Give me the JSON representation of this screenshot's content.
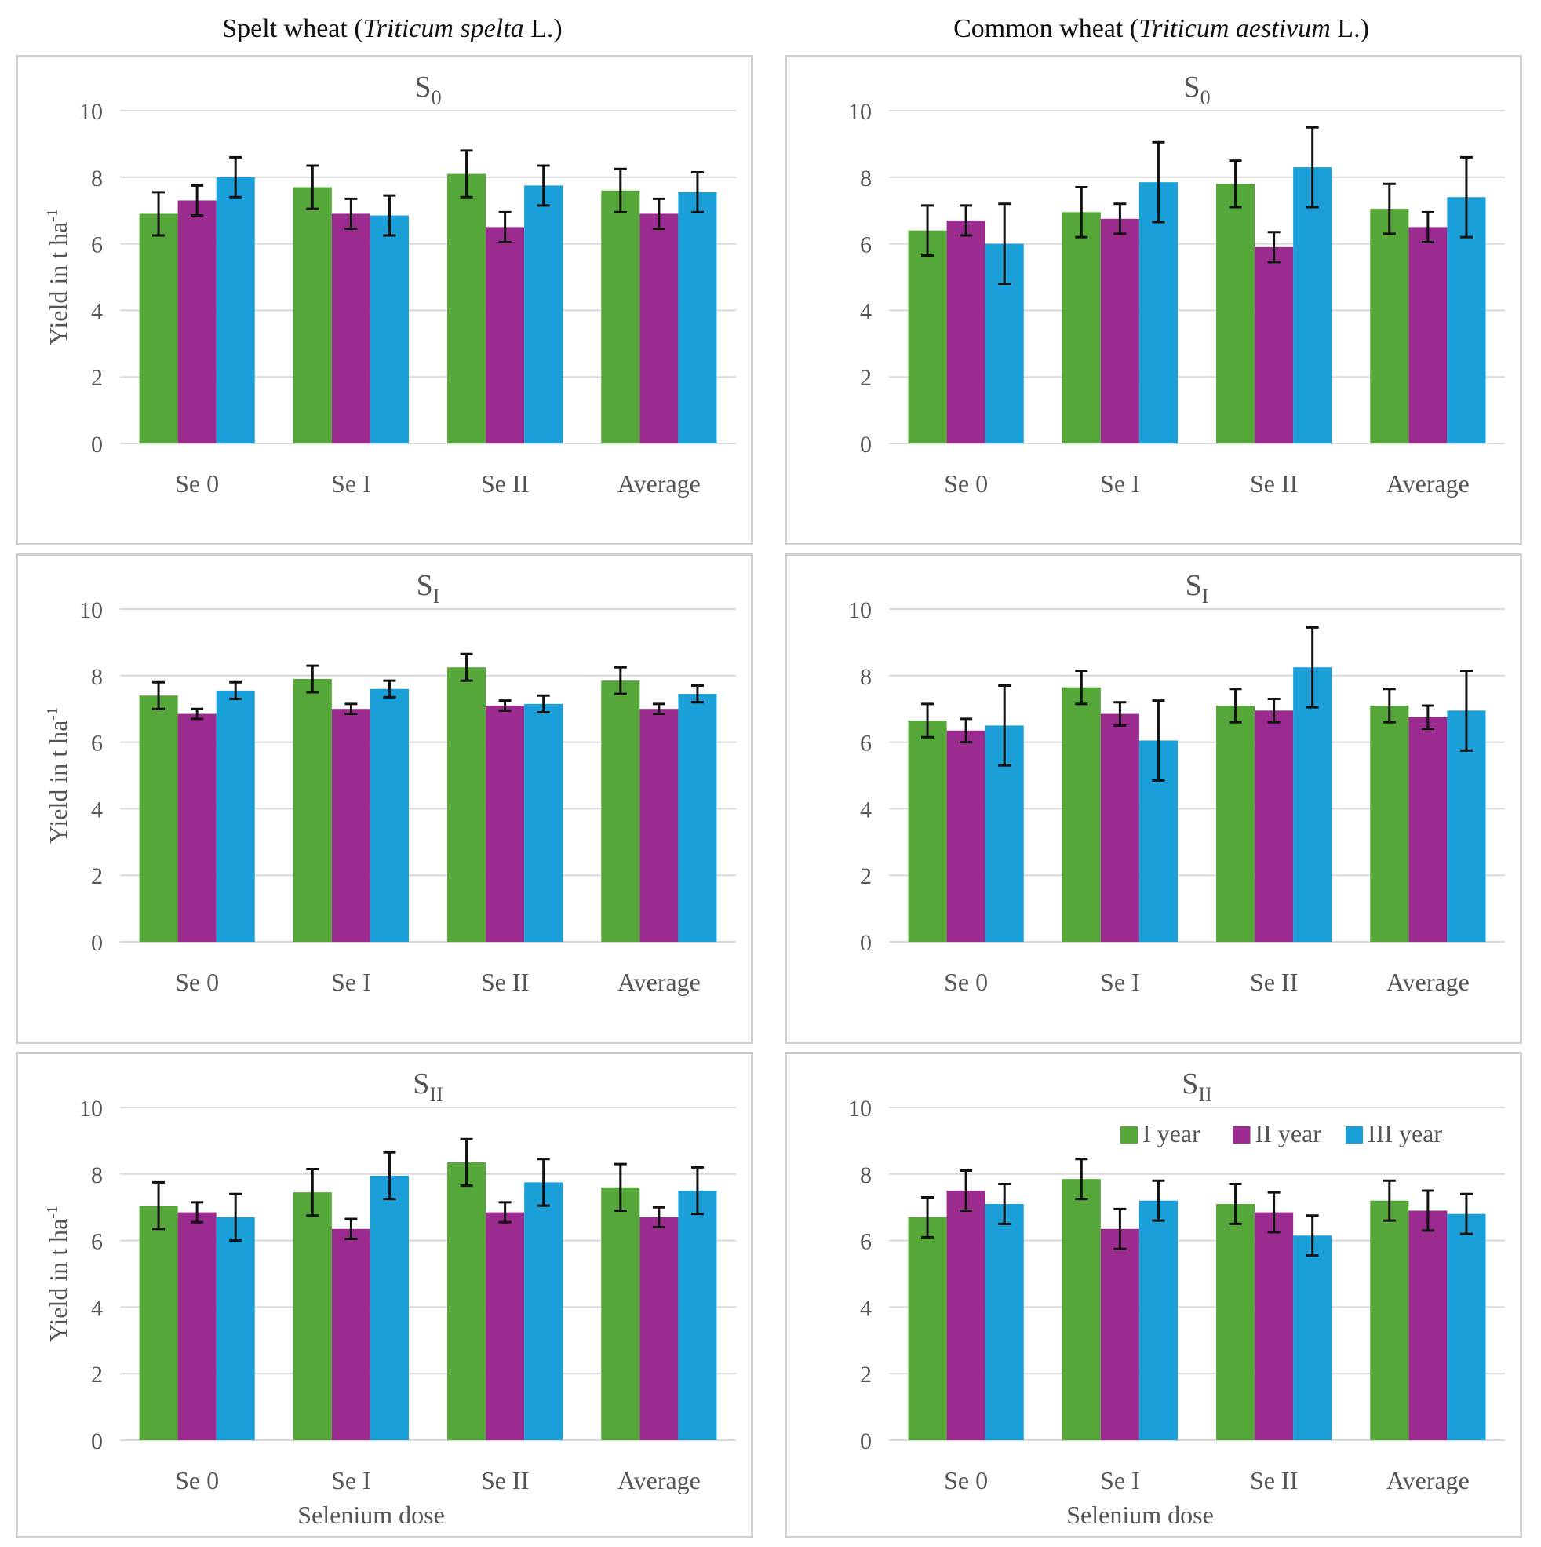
{
  "column_titles": {
    "left": {
      "prefix": "Spelt wheat (",
      "species": "Triticum spelta",
      "suffix": " L.)"
    },
    "right": {
      "prefix": "Common wheat (",
      "species": "Triticum aestivum",
      "suffix": " L.)"
    }
  },
  "colors": {
    "I year": "#56a73a",
    "II year": "#9b2b8e",
    "III year": "#1a9fd8",
    "error_bar": "#111111",
    "grid": "#d9d9d9"
  },
  "chart_data": [
    {
      "id": "spelt-s0",
      "type": "bar",
      "title_base": "S",
      "title_sub": "0",
      "categories": [
        "Se 0",
        "Se I",
        "Se II",
        "Average"
      ],
      "ylabel": "Yield in t ha",
      "ylabel_sup": "-1",
      "xlabel": "",
      "ylim": [
        0,
        10
      ],
      "yticks": [
        0,
        2,
        4,
        6,
        8,
        10
      ],
      "grid": true,
      "series": [
        {
          "name": "I year",
          "values": [
            6.9,
            7.7,
            8.1,
            7.6
          ],
          "errors": [
            0.65,
            0.65,
            0.7,
            0.65
          ]
        },
        {
          "name": "II year",
          "values": [
            7.3,
            6.9,
            6.5,
            6.9
          ],
          "errors": [
            0.45,
            0.45,
            0.45,
            0.45
          ]
        },
        {
          "name": "III year",
          "values": [
            8.0,
            6.85,
            7.75,
            7.55
          ],
          "errors": [
            0.6,
            0.6,
            0.6,
            0.6
          ]
        }
      ]
    },
    {
      "id": "common-s0",
      "type": "bar",
      "title_base": "S",
      "title_sub": "0",
      "categories": [
        "Se 0",
        "Se I",
        "Se II",
        "Average"
      ],
      "ylabel": "",
      "ylabel_sup": "",
      "xlabel": "",
      "ylim": [
        0,
        10
      ],
      "yticks": [
        0,
        2,
        4,
        6,
        8,
        10
      ],
      "grid": true,
      "series": [
        {
          "name": "I year",
          "values": [
            6.4,
            6.95,
            7.8,
            7.05
          ],
          "errors": [
            0.75,
            0.75,
            0.7,
            0.75
          ]
        },
        {
          "name": "II year",
          "values": [
            6.7,
            6.75,
            5.9,
            6.5
          ],
          "errors": [
            0.45,
            0.45,
            0.45,
            0.45
          ]
        },
        {
          "name": "III year",
          "values": [
            6.0,
            7.85,
            8.3,
            7.4
          ],
          "errors": [
            1.2,
            1.2,
            1.2,
            1.2
          ]
        }
      ]
    },
    {
      "id": "spelt-s1",
      "type": "bar",
      "title_base": "S",
      "title_sub": "I",
      "categories": [
        "Se 0",
        "Se I",
        "Se II",
        "Average"
      ],
      "ylabel": "Yield in t ha",
      "ylabel_sup": "-1",
      "xlabel": "",
      "ylim": [
        0,
        10
      ],
      "yticks": [
        0,
        2,
        4,
        6,
        8,
        10
      ],
      "grid": true,
      "series": [
        {
          "name": "I year",
          "values": [
            7.4,
            7.9,
            8.25,
            7.85
          ],
          "errors": [
            0.4,
            0.4,
            0.4,
            0.4
          ]
        },
        {
          "name": "II year",
          "values": [
            6.85,
            7.0,
            7.1,
            7.0
          ],
          "errors": [
            0.15,
            0.15,
            0.15,
            0.15
          ]
        },
        {
          "name": "III year",
          "values": [
            7.55,
            7.6,
            7.15,
            7.45
          ],
          "errors": [
            0.25,
            0.25,
            0.25,
            0.25
          ]
        }
      ]
    },
    {
      "id": "common-s1",
      "type": "bar",
      "title_base": "S",
      "title_sub": "I",
      "categories": [
        "Se 0",
        "Se I",
        "Se II",
        "Average"
      ],
      "ylabel": "",
      "ylabel_sup": "",
      "xlabel": "",
      "ylim": [
        0,
        10
      ],
      "yticks": [
        0,
        2,
        4,
        6,
        8,
        10
      ],
      "grid": true,
      "series": [
        {
          "name": "I year",
          "values": [
            6.65,
            7.65,
            7.1,
            7.1
          ],
          "errors": [
            0.5,
            0.5,
            0.5,
            0.5
          ]
        },
        {
          "name": "II year",
          "values": [
            6.35,
            6.85,
            6.95,
            6.75
          ],
          "errors": [
            0.35,
            0.35,
            0.35,
            0.35
          ]
        },
        {
          "name": "III year",
          "values": [
            6.5,
            6.05,
            8.25,
            6.95
          ],
          "errors": [
            1.2,
            1.2,
            1.2,
            1.2
          ]
        }
      ]
    },
    {
      "id": "spelt-s2",
      "type": "bar",
      "title_base": "S",
      "title_sub": "II",
      "categories": [
        "Se 0",
        "Se I",
        "Se II",
        "Average"
      ],
      "ylabel": "Yield in t ha",
      "ylabel_sup": "-1",
      "xlabel": "Selenium dose",
      "ylim": [
        0,
        10
      ],
      "yticks": [
        0,
        2,
        4,
        6,
        8,
        10
      ],
      "grid": true,
      "series": [
        {
          "name": "I year",
          "values": [
            7.05,
            7.45,
            8.35,
            7.6
          ],
          "errors": [
            0.7,
            0.7,
            0.7,
            0.7
          ]
        },
        {
          "name": "II year",
          "values": [
            6.85,
            6.35,
            6.85,
            6.7
          ],
          "errors": [
            0.3,
            0.3,
            0.3,
            0.3
          ]
        },
        {
          "name": "III year",
          "values": [
            6.7,
            7.95,
            7.75,
            7.5
          ],
          "errors": [
            0.7,
            0.7,
            0.7,
            0.7
          ]
        }
      ]
    },
    {
      "id": "common-s2",
      "type": "bar",
      "title_base": "S",
      "title_sub": "II",
      "categories": [
        "Se 0",
        "Se I",
        "Se II",
        "Average"
      ],
      "ylabel": "",
      "ylabel_sup": "",
      "xlabel": "Selenium dose",
      "ylim": [
        0,
        10
      ],
      "yticks": [
        0,
        2,
        4,
        6,
        8,
        10
      ],
      "grid": true,
      "legend": {
        "position": "top-right",
        "entries": [
          "I  year",
          "II year",
          "III year"
        ]
      },
      "series": [
        {
          "name": "I year",
          "values": [
            6.7,
            7.85,
            7.1,
            7.2
          ],
          "errors": [
            0.6,
            0.6,
            0.6,
            0.6
          ]
        },
        {
          "name": "II year",
          "values": [
            7.5,
            6.35,
            6.85,
            6.9
          ],
          "errors": [
            0.6,
            0.6,
            0.6,
            0.6
          ]
        },
        {
          "name": "III year",
          "values": [
            7.1,
            7.2,
            6.15,
            6.8
          ],
          "errors": [
            0.6,
            0.6,
            0.6,
            0.6
          ]
        }
      ]
    }
  ]
}
